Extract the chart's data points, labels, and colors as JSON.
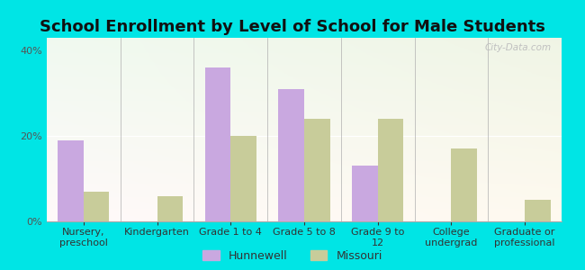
{
  "title": "School Enrollment by Level of School for Male Students",
  "categories": [
    "Nursery,\npreschool",
    "Kindergarten",
    "Grade 1 to 4",
    "Grade 5 to 8",
    "Grade 9 to\n12",
    "College\nundergrad",
    "Graduate or\nprofessional"
  ],
  "hunnewell": [
    19,
    0,
    36,
    31,
    13,
    0,
    0
  ],
  "missouri": [
    7,
    6,
    20,
    24,
    24,
    17,
    5
  ],
  "hunnewell_color": "#c9a8e0",
  "missouri_color": "#c8cc9a",
  "background_outer": "#00e5e5",
  "yticks": [
    0,
    20,
    40
  ],
  "ylim": [
    0,
    43
  ],
  "bar_width": 0.35,
  "legend_labels": [
    "Hunnewell",
    "Missouri"
  ],
  "title_fontsize": 13,
  "tick_fontsize": 8
}
